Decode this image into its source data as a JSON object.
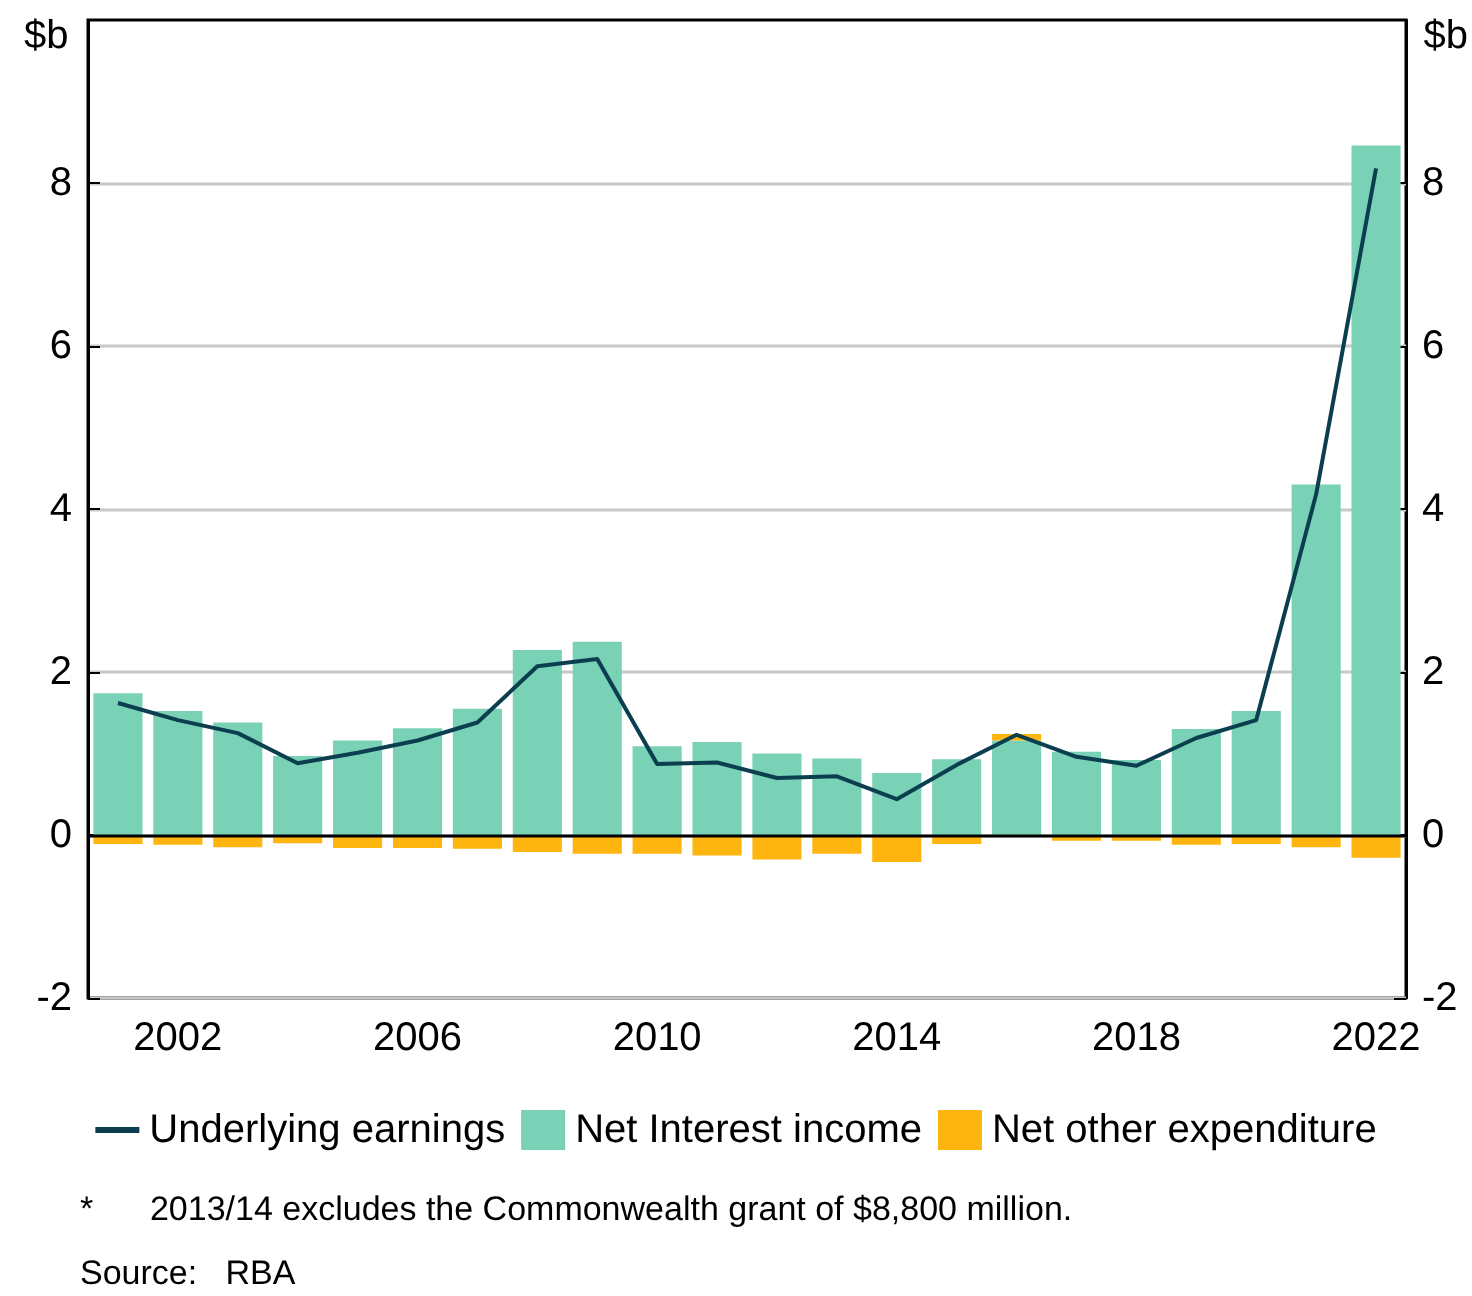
{
  "chart_data": {
    "type": "bar",
    "stacked": true,
    "ylabel": "$b",
    "y2label": "$b",
    "categories": [
      null,
      "2002",
      null,
      null,
      null,
      "2006",
      null,
      null,
      null,
      "2010",
      null,
      null,
      null,
      "2014",
      null,
      null,
      null,
      "2018",
      null,
      null,
      null,
      "2022"
    ],
    "series": [
      {
        "name": "Underlying earnings",
        "type": "line",
        "color": "#0b3f50",
        "values": [
          1.62,
          1.41,
          1.25,
          0.88,
          1.01,
          1.16,
          1.38,
          2.07,
          2.16,
          0.87,
          0.89,
          0.7,
          0.72,
          0.44,
          0.86,
          1.23,
          0.96,
          0.85,
          1.19,
          1.41,
          4.18,
          8.18
        ]
      },
      {
        "name": "Net Interest income",
        "color": "#79d2b6",
        "values": [
          1.74,
          1.52,
          1.38,
          0.97,
          1.16,
          1.31,
          1.55,
          2.27,
          2.37,
          1.09,
          1.14,
          1.0,
          0.94,
          0.76,
          0.93,
          1.16,
          1.02,
          0.92,
          1.3,
          1.52,
          4.3,
          8.46
        ]
      },
      {
        "name": "Net other expenditure",
        "color": "#ffb50f",
        "values": [
          -0.11,
          -0.12,
          -0.15,
          -0.1,
          -0.16,
          -0.16,
          -0.17,
          -0.21,
          -0.23,
          -0.23,
          -0.25,
          -0.3,
          -0.23,
          -0.33,
          -0.11,
          0.08,
          -0.07,
          -0.07,
          -0.12,
          -0.11,
          -0.15,
          -0.28
        ]
      }
    ],
    "ylim": [
      -2,
      10
    ],
    "yticks": [
      -2,
      0,
      2,
      4,
      6,
      8
    ],
    "y2lim": [
      -2,
      10
    ],
    "y2ticks": [
      -2,
      0,
      2,
      4,
      6,
      8
    ],
    "grid": "y",
    "legend": "bottom",
    "marker": "none",
    "annotations": [
      "*      2013/14 excludes the Commonwealth grant of $8,800 million.",
      "Source:   RBA"
    ]
  }
}
